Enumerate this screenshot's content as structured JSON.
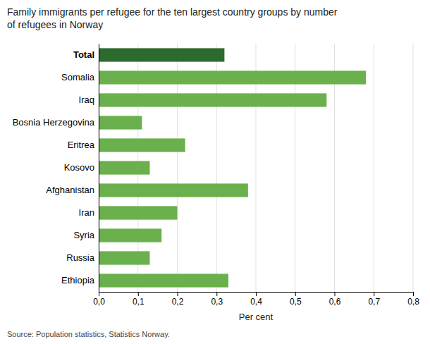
{
  "chart_data": {
    "type": "bar",
    "orientation": "horizontal",
    "title": "Family immigrants per refugee for the ten largest country groups by number\nof refugees in Norway",
    "categories": [
      "Ethiopia",
      "Russia",
      "Syria",
      "Iran",
      "Afghanistan",
      "Kosovo",
      "Eritrea",
      "Bosnia Herzegovina",
      "Iraq",
      "Somalia",
      "Total"
    ],
    "values": [
      0.33,
      0.13,
      0.16,
      0.2,
      0.38,
      0.13,
      0.22,
      0.11,
      0.58,
      0.68,
      0.32
    ],
    "colors": [
      "#6ab04c",
      "#6ab04c",
      "#6ab04c",
      "#6ab04c",
      "#6ab04c",
      "#6ab04c",
      "#6ab04c",
      "#6ab04c",
      "#6ab04c",
      "#6ab04c",
      "#2d6a2d"
    ],
    "xlabel": "Per cent",
    "xlim": [
      0,
      0.8
    ],
    "xticks": [
      {
        "value": 0.0,
        "label": "0,0"
      },
      {
        "value": 0.1,
        "label": "0,1"
      },
      {
        "value": 0.2,
        "label": "0,2"
      },
      {
        "value": 0.3,
        "label": "0,3"
      },
      {
        "value": 0.4,
        "label": "0,4"
      },
      {
        "value": 0.5,
        "label": "0,5"
      },
      {
        "value": 0.6,
        "label": "0,6"
      },
      {
        "value": 0.7,
        "label": "0,7"
      },
      {
        "value": 0.8,
        "label": "0,8"
      }
    ],
    "grid": true,
    "source": "Source: Population statistics, Statistics Norway."
  }
}
